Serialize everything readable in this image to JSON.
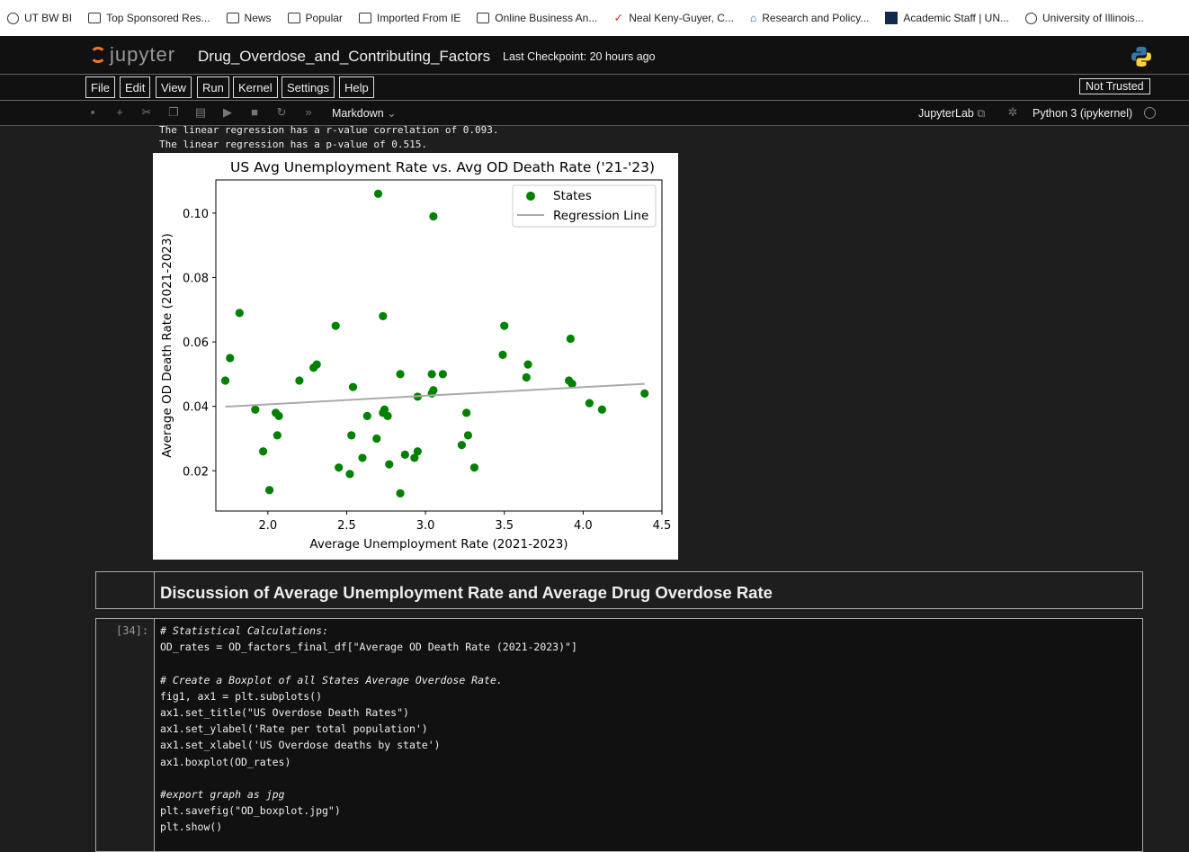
{
  "bookmarks": [
    {
      "label": "UT BW BI",
      "icon": "globe-icon"
    },
    {
      "label": "Top Sponsored Res...",
      "icon": "folder-icon"
    },
    {
      "label": "News",
      "icon": "folder-icon"
    },
    {
      "label": "Popular",
      "icon": "folder-icon"
    },
    {
      "label": "Imported From IE",
      "icon": "folder-icon"
    },
    {
      "label": "Online Business An...",
      "icon": "folder-icon"
    },
    {
      "label": "Neal Keny-Guyer, C...",
      "icon": "leaf-icon"
    },
    {
      "label": "Research and Policy...",
      "icon": "bank-icon"
    },
    {
      "label": "Academic Staff | UN...",
      "icon": "unc-icon"
    },
    {
      "label": "University of Illinois...",
      "icon": "globe-icon"
    }
  ],
  "header": {
    "logo_text": "jupyter",
    "notebook_title": "Drug_Overdose_and_Contributing_Factors",
    "checkpoint": "Last Checkpoint: 20 hours ago"
  },
  "menu": {
    "items": [
      "File",
      "Edit",
      "View",
      "Run",
      "Kernel",
      "Settings",
      "Help"
    ],
    "trust_label": "Not Trusted"
  },
  "toolbar": {
    "cell_type": "Markdown",
    "jupyterlab_label": "JupyterLab",
    "kernel_label": "Python 3 (ipykernel)"
  },
  "output": {
    "lines": [
      "The linear regression has a r-value correlation of 0.093.",
      "The linear regression has a p-value of 0.515."
    ]
  },
  "chart_data": {
    "type": "scatter",
    "title": "US Avg Unemployment Rate vs. Avg OD Death Rate ('21-'23)",
    "xlabel": "Average Unemployment Rate (2021-2023)",
    "ylabel": "Average OD Death Rate (2021-2023)",
    "xlim": [
      1.67,
      4.5
    ],
    "ylim": [
      0.0075,
      0.1103
    ],
    "xticks": [
      "2.0",
      "2.5",
      "3.0",
      "3.5",
      "4.0",
      "4.5"
    ],
    "yticks": [
      "0.02",
      "0.04",
      "0.06",
      "0.08",
      "0.10"
    ],
    "legend_position": "top-right",
    "series": [
      {
        "name": "States",
        "color": "#008000",
        "points": [
          [
            1.73,
            0.048
          ],
          [
            1.76,
            0.055
          ],
          [
            1.82,
            0.069
          ],
          [
            1.92,
            0.039
          ],
          [
            1.97,
            0.026
          ],
          [
            2.01,
            0.014
          ],
          [
            2.05,
            0.038
          ],
          [
            2.06,
            0.031
          ],
          [
            2.07,
            0.037
          ],
          [
            2.2,
            0.048
          ],
          [
            2.29,
            0.052
          ],
          [
            2.31,
            0.053
          ],
          [
            2.43,
            0.065
          ],
          [
            2.45,
            0.021
          ],
          [
            2.52,
            0.019
          ],
          [
            2.53,
            0.031
          ],
          [
            2.54,
            0.046
          ],
          [
            2.6,
            0.024
          ],
          [
            2.63,
            0.037
          ],
          [
            2.69,
            0.03
          ],
          [
            2.7,
            0.106
          ],
          [
            2.73,
            0.068
          ],
          [
            2.73,
            0.038
          ],
          [
            2.74,
            0.039
          ],
          [
            2.76,
            0.037
          ],
          [
            2.77,
            0.022
          ],
          [
            2.84,
            0.013
          ],
          [
            2.84,
            0.05
          ],
          [
            2.87,
            0.025
          ],
          [
            2.93,
            0.024
          ],
          [
            2.95,
            0.026
          ],
          [
            2.95,
            0.043
          ],
          [
            3.04,
            0.044
          ],
          [
            3.04,
            0.05
          ],
          [
            3.05,
            0.099
          ],
          [
            3.05,
            0.045
          ],
          [
            3.11,
            0.05
          ],
          [
            3.23,
            0.028
          ],
          [
            3.26,
            0.038
          ],
          [
            3.27,
            0.031
          ],
          [
            3.31,
            0.021
          ],
          [
            3.49,
            0.056
          ],
          [
            3.5,
            0.065
          ],
          [
            3.64,
            0.049
          ],
          [
            3.65,
            0.053
          ],
          [
            3.91,
            0.048
          ],
          [
            3.92,
            0.061
          ],
          [
            3.93,
            0.047
          ],
          [
            4.04,
            0.041
          ],
          [
            4.12,
            0.039
          ],
          [
            4.39,
            0.044
          ]
        ]
      },
      {
        "name": "Regression Line",
        "color": "#aaaaaa",
        "line": [
          [
            1.73,
            0.0399
          ],
          [
            4.39,
            0.047
          ]
        ]
      }
    ]
  },
  "markdown_cell": {
    "heading": "Discussion of Average Unemployment Rate and Average Drug Overdose Rate"
  },
  "code_cell": {
    "prompt": "[34]:",
    "lines": [
      "# Statistical Calculations:",
      "OD_rates = OD_factors_final_df[\"Average OD Death Rate (2021-2023)\"]",
      "",
      "# Create a Boxplot of all States Average Overdose Rate.",
      "fig1, ax1 = plt.subplots()",
      "ax1.set_title(\"US Overdose Death Rates\")",
      "ax1.set_ylabel('Rate per total population')",
      "ax1.set_xlabel('US Overdose deaths by state')",
      "ax1.boxplot(OD_rates)",
      "",
      "#export graph as jpg",
      "plt.savefig(\"OD_boxplot.jpg\")",
      "plt.show()"
    ]
  }
}
